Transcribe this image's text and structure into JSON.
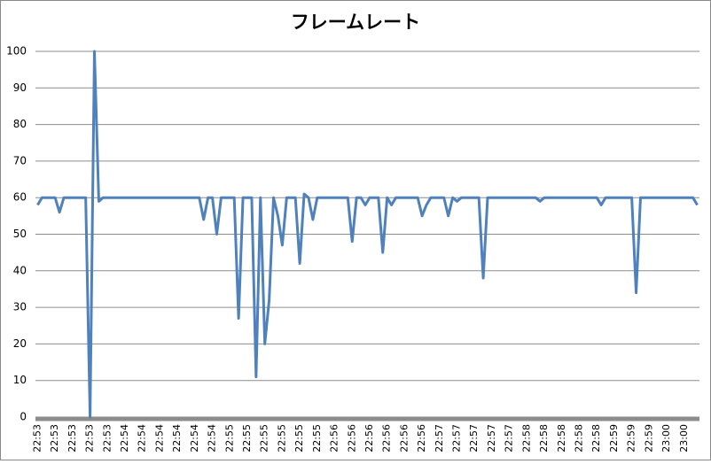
{
  "chart_data": {
    "type": "line",
    "title": "フレームレート",
    "categories": [
      "22:53",
      null,
      null,
      null,
      "22:53",
      null,
      null,
      null,
      "22:53",
      null,
      null,
      null,
      "22:53",
      null,
      null,
      null,
      "22:53",
      null,
      null,
      null,
      "22:54",
      null,
      null,
      null,
      "22:54",
      null,
      null,
      null,
      "22:54",
      null,
      null,
      null,
      "22:54",
      null,
      null,
      null,
      "22:54",
      null,
      null,
      null,
      "22:54",
      null,
      null,
      null,
      "22:55",
      null,
      null,
      null,
      "22:55",
      null,
      null,
      null,
      "22:55",
      null,
      null,
      null,
      "22:55",
      null,
      null,
      null,
      "22:55",
      null,
      null,
      null,
      "22:55",
      null,
      null,
      null,
      "22:56",
      null,
      null,
      null,
      "22:56",
      null,
      null,
      null,
      "22:56",
      null,
      null,
      null,
      "22:56",
      null,
      null,
      null,
      "22:56",
      null,
      null,
      null,
      "22:56",
      null,
      null,
      null,
      "22:57",
      null,
      null,
      null,
      "22:57",
      null,
      null,
      null,
      "22:57",
      null,
      null,
      null,
      "22:57",
      null,
      null,
      null,
      "22:57",
      null,
      null,
      null,
      "22:58",
      null,
      null,
      null,
      "22:58",
      null,
      null,
      null,
      "22:58",
      null,
      null,
      null,
      "22:58",
      null,
      null,
      null,
      "22:58",
      null,
      null,
      null,
      "22:59",
      null,
      null,
      null,
      "22:59",
      null,
      null,
      null,
      "22:59",
      null,
      null,
      null,
      "23:00",
      null,
      null,
      null,
      "23:00",
      null,
      null,
      null
    ],
    "values": [
      58,
      60,
      60,
      60,
      60,
      56,
      60,
      60,
      60,
      60,
      60,
      60,
      0,
      100,
      59,
      60,
      60,
      60,
      60,
      60,
      60,
      60,
      60,
      60,
      60,
      60,
      60,
      60,
      60,
      60,
      60,
      60,
      60,
      60,
      60,
      60,
      60,
      60,
      54,
      60,
      60,
      50,
      60,
      60,
      60,
      60,
      27,
      60,
      60,
      60,
      11,
      60,
      20,
      32,
      60,
      55,
      47,
      60,
      60,
      60,
      42,
      61,
      60,
      54,
      60,
      60,
      60,
      60,
      60,
      60,
      60,
      60,
      48,
      60,
      60,
      58,
      60,
      60,
      60,
      45,
      60,
      58,
      60,
      60,
      60,
      60,
      60,
      60,
      55,
      58,
      60,
      60,
      60,
      60,
      55,
      60,
      59,
      60,
      60,
      60,
      60,
      60,
      38,
      60,
      60,
      60,
      60,
      60,
      60,
      60,
      60,
      60,
      60,
      60,
      60,
      59,
      60,
      60,
      60,
      60,
      60,
      60,
      60,
      60,
      60,
      60,
      60,
      60,
      60,
      58,
      60,
      60,
      60,
      60,
      60,
      60,
      60,
      34,
      60,
      60,
      60,
      60,
      60,
      60,
      60,
      60,
      60,
      60,
      60,
      60,
      60,
      58
    ],
    "color": "#4f81bd",
    "ylim": [
      0,
      100
    ],
    "yticks": [
      0,
      10,
      20,
      30,
      40,
      50,
      60,
      70,
      80,
      90,
      100
    ],
    "grid": true
  }
}
